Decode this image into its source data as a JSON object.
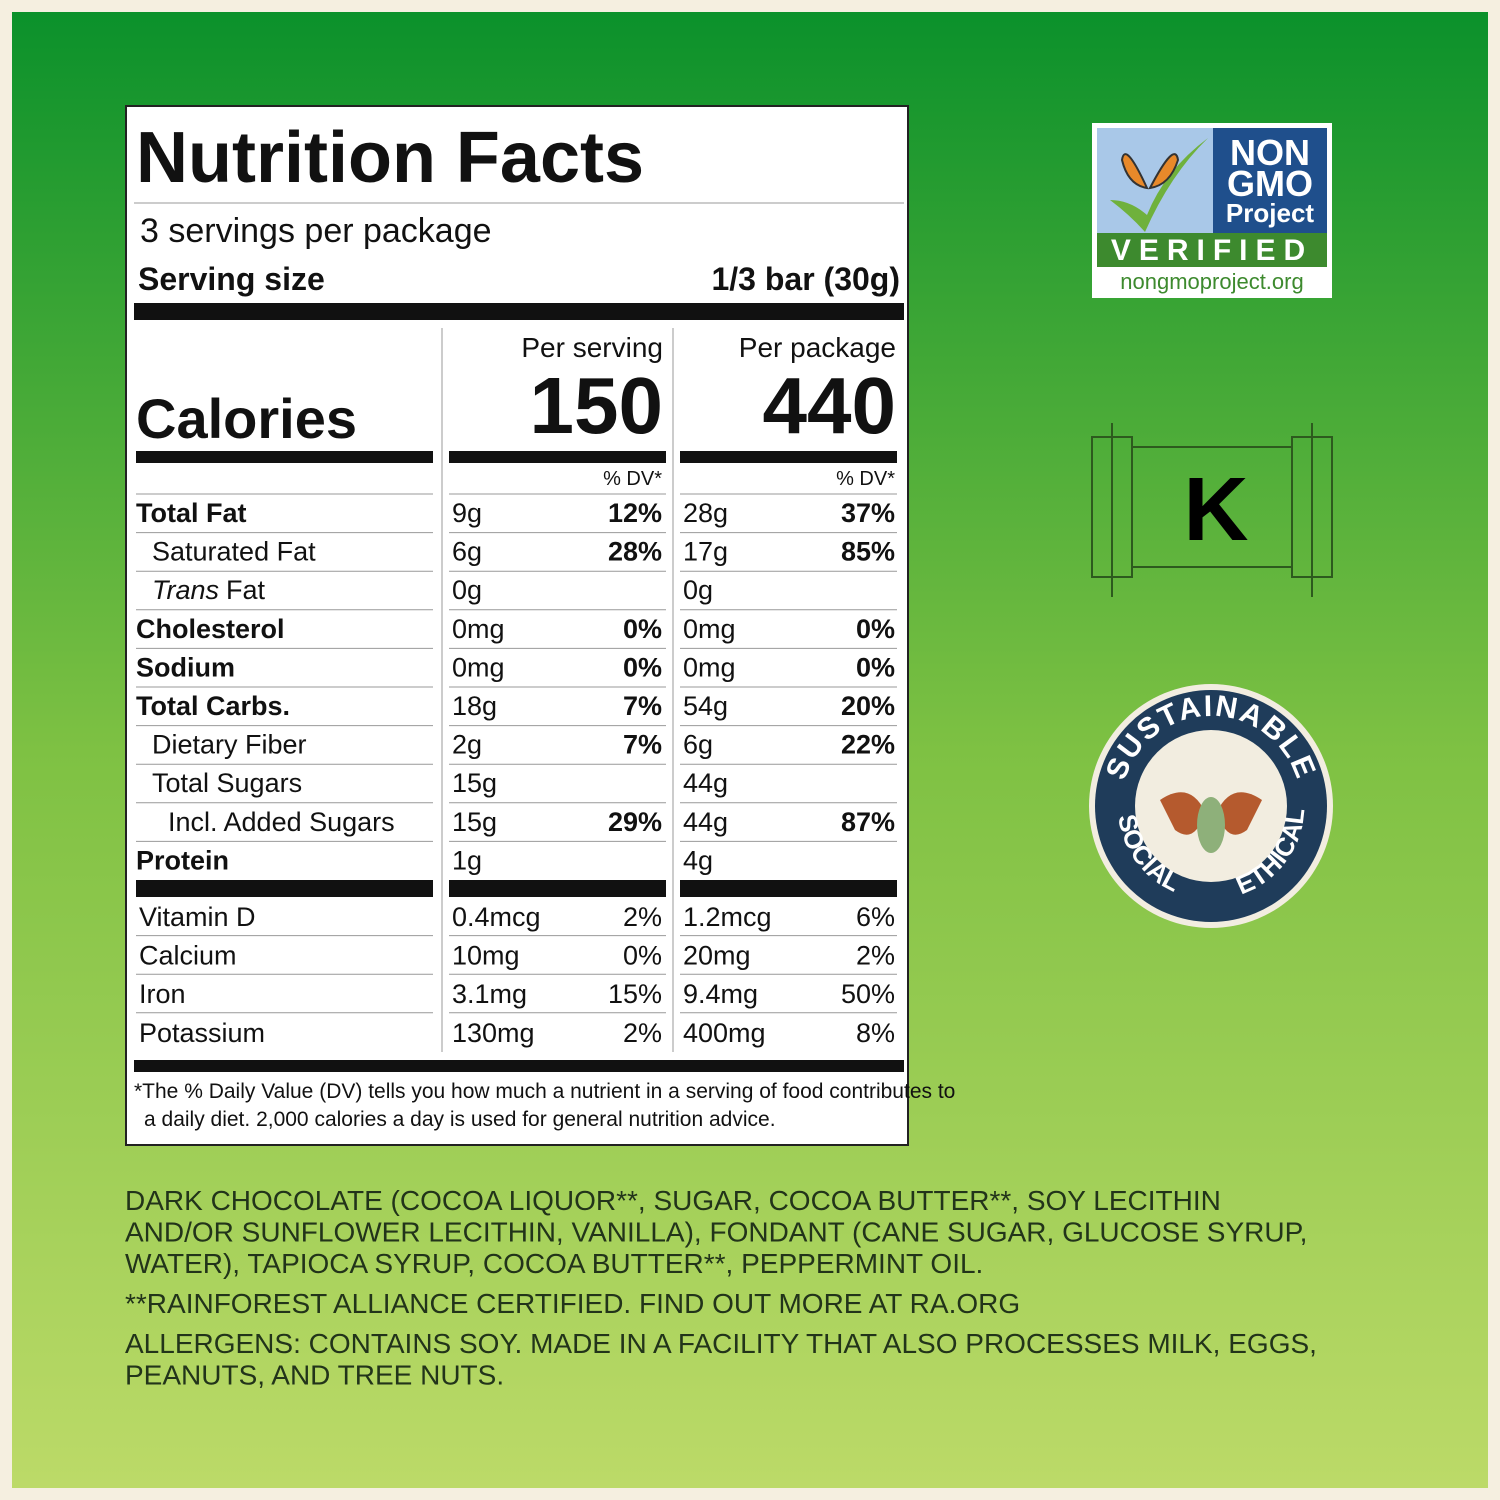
{
  "label": {
    "title": "Nutrition Facts",
    "servings": "3 servings per package",
    "serving_size_label": "Serving size",
    "serving_size": "1/3 bar (30g)",
    "calories_label": "Calories",
    "columns": [
      {
        "header": "Per serving",
        "calories": "150",
        "dv_header": "% DV*"
      },
      {
        "header": "Per package",
        "calories": "440",
        "dv_header": "% DV*"
      }
    ],
    "nutrients": [
      {
        "name": "Total Fat",
        "bold": true,
        "indent": 0,
        "serving": [
          "9g",
          "12%"
        ],
        "package": [
          "28g",
          "37%"
        ]
      },
      {
        "name": "Saturated Fat",
        "bold": false,
        "indent": 1,
        "serving": [
          "6g",
          "28%"
        ],
        "package": [
          "17g",
          "85%"
        ]
      },
      {
        "name_italic": "Trans",
        "name": "Fat",
        "bold": false,
        "indent": 1,
        "serving": [
          "0g",
          null
        ],
        "package": [
          "0g",
          null
        ]
      },
      {
        "name": "Cholesterol",
        "bold": true,
        "indent": 0,
        "serving": [
          "0mg",
          "0%"
        ],
        "package": [
          "0mg",
          "0%"
        ]
      },
      {
        "name": "Sodium",
        "bold": true,
        "indent": 0,
        "serving": [
          "0mg",
          "0%"
        ],
        "package": [
          "0mg",
          "0%"
        ]
      },
      {
        "name": "Total Carbs.",
        "bold": true,
        "indent": 0,
        "serving": [
          "18g",
          "7%"
        ],
        "package": [
          "54g",
          "20%"
        ]
      },
      {
        "name": "Dietary Fiber",
        "bold": false,
        "indent": 1,
        "serving": [
          "2g",
          "7%"
        ],
        "package": [
          "6g",
          "22%"
        ]
      },
      {
        "name": "Total Sugars",
        "bold": false,
        "indent": 1,
        "serving": [
          "15g",
          null
        ],
        "package": [
          "44g",
          null
        ]
      },
      {
        "name": "Incl. Added Sugars",
        "bold": false,
        "indent": 2,
        "serving": [
          "15g",
          "29%"
        ],
        "package": [
          "44g",
          "87%"
        ]
      },
      {
        "name": "Protein",
        "bold": true,
        "indent": 0,
        "serving": [
          "1g",
          null
        ],
        "package": [
          "4g",
          null
        ]
      }
    ],
    "vitamins": [
      {
        "name": "Vitamin D",
        "serving": [
          "0.4mcg",
          "2%"
        ],
        "package": [
          "1.2mcg",
          "6%"
        ]
      },
      {
        "name": "Calcium",
        "serving": [
          "10mg",
          "0%"
        ],
        "package": [
          "20mg",
          "2%"
        ]
      },
      {
        "name": "Iron",
        "serving": [
          "3.1mg",
          "15%"
        ],
        "package": [
          "9.4mg",
          "50%"
        ]
      },
      {
        "name": "Potassium",
        "serving": [
          "130mg",
          "2%"
        ],
        "package": [
          "400mg",
          "8%"
        ]
      }
    ],
    "footnote": [
      "*The % Daily Value (DV) tells you how much a nutrient in a serving of food contributes to",
      "a daily diet. 2,000 calories a day is used for general nutrition advice."
    ]
  },
  "ingredients": [
    [
      "DARK CHOCOLATE (COCOA LIQUOR**, SUGAR, COCOA BUTTER**, SOY LECITHIN",
      "AND/OR SUNFLOWER LECITHIN, VANILLA), FONDANT (CANE SUGAR, GLUCOSE SYRUP,",
      "WATER), TAPIOCA SYRUP, COCOA BUTTER**, PEPPERMINT OIL."
    ],
    [
      "**RAINFOREST ALLIANCE CERTIFIED. FIND OUT MORE AT RA.ORG"
    ],
    [
      "ALLERGENS: CONTAINS SOY. MADE IN A FACILITY THAT ALSO PROCESSES MILK, EGGS,",
      "PEANUTS, AND TREE NUTS."
    ]
  ],
  "badges": {
    "non_gmo": {
      "lines": [
        "NON",
        "GMO",
        "Project"
      ],
      "verified": "VERIFIED",
      "url": "nongmoproject.org"
    },
    "kosher": "K",
    "sustainable": {
      "top": "SUSTAINABLE",
      "left": "SOCIAL",
      "right": "ETHICAL"
    }
  }
}
